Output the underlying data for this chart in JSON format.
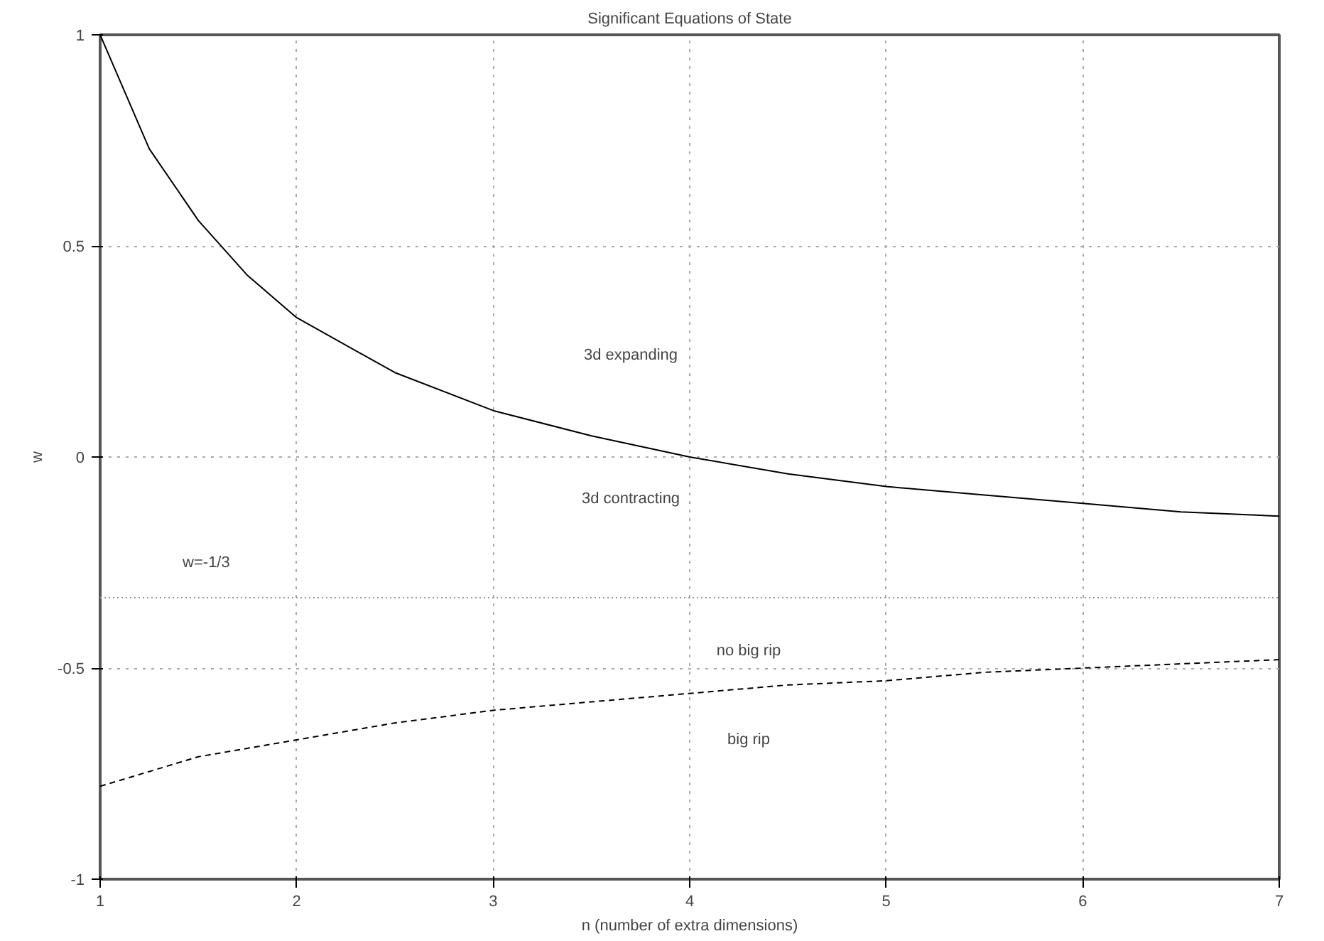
{
  "chart_data": {
    "type": "line",
    "title": "Significant Equations of State",
    "xlabel": "n (number of extra dimensions)",
    "ylabel": "w",
    "xlim": [
      1,
      7
    ],
    "ylim": [
      -1,
      1
    ],
    "xticks": [
      1,
      2,
      3,
      4,
      5,
      6,
      7
    ],
    "yticks": [
      -1,
      -0.5,
      0,
      0.5,
      1
    ],
    "grid": true,
    "series": [
      {
        "color": "#000000",
        "line_style": "solid",
        "x": [
          1,
          1.25,
          1.5,
          1.75,
          2,
          2.5,
          3,
          3.5,
          4,
          4.5,
          5,
          5.5,
          6,
          6.5,
          7
        ],
        "values": [
          1,
          0.73,
          0.56,
          0.43,
          0.33,
          0.2,
          0.11,
          0.05,
          0,
          -0.04,
          -0.07,
          -0.09,
          -0.11,
          -0.13,
          -0.14
        ]
      },
      {
        "color": "#000000",
        "line_style": "dashed",
        "x": [
          1,
          1.5,
          2,
          2.5,
          3,
          3.5,
          4,
          4.5,
          5,
          5.5,
          6,
          6.5,
          7
        ],
        "values": [
          -0.78,
          -0.71,
          -0.67,
          -0.63,
          -0.6,
          -0.58,
          -0.56,
          -0.54,
          -0.53,
          -0.51,
          -0.5,
          -0.49,
          -0.48
        ]
      }
    ],
    "ref_lines": [
      {
        "axis": "y",
        "value": -0.3333333,
        "color": "#999999",
        "line_style": "dotted"
      }
    ],
    "annotations": [
      "w=-1/3",
      "3d expanding",
      "3d contracting",
      "no big rip",
      "big rip"
    ]
  }
}
